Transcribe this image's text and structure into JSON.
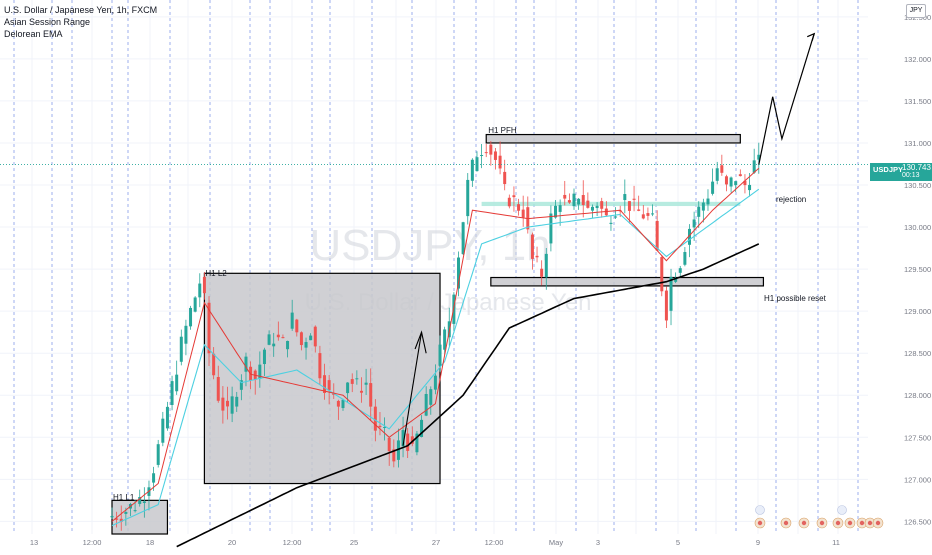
{
  "legend": {
    "title": "U.S. Dollar / Japanese Yen, 1h, FXCM",
    "indicator1": "Asian Session Range",
    "indicator2": "Delorean EMA"
  },
  "watermark": {
    "symbol": "USDJPY",
    "interval": "1h",
    "name": "U.S. Dollar / Japanese Yen"
  },
  "currency_button": "JPY",
  "price_tag": {
    "symbol": "USDJPY",
    "price": "130.743",
    "countdown": "00:13",
    "color": "#26a69a"
  },
  "annotations": {
    "h1_l1": "H1 L1",
    "h1_l2": "H1 L2",
    "h1_pfh": "H1 PFH",
    "rejection": "rejection",
    "h1_reset": "H1 possible reset"
  },
  "colors": {
    "up_candle": "#26a69a",
    "down_candle": "#ef5350",
    "ema_fast": "#e53935",
    "ema_mid": "#4dd0e1",
    "ema_slow": "#000000",
    "session_line": "#5b7ae0",
    "zone_fill": "#c8c8cc",
    "rejection_zone": "#a5e6d8"
  },
  "chart_data": {
    "type": "candlestick",
    "symbol": "USDJPY",
    "timeframe": "1h",
    "y_axis": {
      "ticks": [
        "132.500",
        "132.000",
        "131.500",
        "131.000",
        "130.500",
        "130.000",
        "129.500",
        "129.000",
        "128.500",
        "128.000",
        "127.500",
        "127.000",
        "126.500"
      ],
      "range": [
        126.35,
        132.7
      ]
    },
    "x_axis": {
      "ticks": [
        "13",
        "12:00",
        "18",
        "12:00",
        "20",
        "12:00",
        "25",
        "27",
        "12:00",
        "May",
        "3",
        "5",
        "9",
        "11"
      ]
    },
    "price_path": [
      [
        0,
        126.55
      ],
      [
        3,
        126.6
      ],
      [
        6,
        126.7
      ],
      [
        8,
        126.85
      ],
      [
        10,
        127.15
      ],
      [
        12,
        127.6
      ],
      [
        14,
        128.1
      ],
      [
        16,
        128.6
      ],
      [
        18,
        129.0
      ],
      [
        20,
        129.35
      ],
      [
        21,
        129.1
      ],
      [
        22,
        128.5
      ],
      [
        24,
        128.0
      ],
      [
        26,
        127.75
      ],
      [
        28,
        128.1
      ],
      [
        30,
        128.4
      ],
      [
        32,
        128.2
      ],
      [
        34,
        128.55
      ],
      [
        36,
        128.7
      ],
      [
        38,
        128.6
      ],
      [
        40,
        128.9
      ],
      [
        42,
        128.6
      ],
      [
        44,
        128.8
      ],
      [
        46,
        128.3
      ],
      [
        48,
        128.0
      ],
      [
        50,
        127.9
      ],
      [
        52,
        128.2
      ],
      [
        54,
        128.1
      ],
      [
        56,
        128.15
      ],
      [
        58,
        127.6
      ],
      [
        60,
        127.5
      ],
      [
        62,
        127.2
      ],
      [
        64,
        127.6
      ],
      [
        66,
        127.3
      ],
      [
        68,
        127.7
      ],
      [
        70,
        128.1
      ],
      [
        72,
        128.5
      ],
      [
        74,
        128.9
      ],
      [
        76,
        129.7
      ],
      [
        78,
        130.5
      ],
      [
        80,
        130.9
      ],
      [
        82,
        131.0
      ],
      [
        84,
        130.8
      ],
      [
        86,
        130.4
      ],
      [
        88,
        130.3
      ],
      [
        90,
        130.2
      ],
      [
        92,
        129.6
      ],
      [
        94,
        129.45
      ],
      [
        96,
        130.1
      ],
      [
        98,
        130.35
      ],
      [
        100,
        130.2
      ],
      [
        102,
        130.4
      ],
      [
        104,
        130.2
      ],
      [
        106,
        130.3
      ],
      [
        108,
        130.1
      ],
      [
        110,
        130.25
      ],
      [
        112,
        130.35
      ],
      [
        114,
        130.2
      ],
      [
        116,
        130.15
      ],
      [
        118,
        130.05
      ],
      [
        120,
        129.3
      ],
      [
        121,
        129.0
      ],
      [
        122,
        129.4
      ],
      [
        124,
        129.6
      ],
      [
        126,
        130.0
      ],
      [
        128,
        130.2
      ],
      [
        130,
        130.4
      ],
      [
        132,
        130.7
      ],
      [
        134,
        130.45
      ],
      [
        136,
        130.6
      ],
      [
        138,
        130.5
      ],
      [
        140,
        130.743
      ]
    ],
    "ema_fast_anchor": [
      [
        0,
        126.5
      ],
      [
        10,
        126.95
      ],
      [
        20,
        129.1
      ],
      [
        30,
        128.25
      ],
      [
        50,
        128.0
      ],
      [
        60,
        127.5
      ],
      [
        70,
        127.9
      ],
      [
        78,
        130.2
      ],
      [
        90,
        130.1
      ],
      [
        110,
        130.2
      ],
      [
        120,
        129.6
      ],
      [
        130,
        130.2
      ],
      [
        140,
        130.7
      ]
    ],
    "ema_mid_anchor": [
      [
        0,
        126.45
      ],
      [
        10,
        126.7
      ],
      [
        20,
        128.6
      ],
      [
        28,
        128.15
      ],
      [
        40,
        128.3
      ],
      [
        60,
        127.6
      ],
      [
        72,
        128.4
      ],
      [
        80,
        129.8
      ],
      [
        90,
        130.0
      ],
      [
        110,
        130.15
      ],
      [
        120,
        129.65
      ],
      [
        130,
        130.05
      ],
      [
        140,
        130.45
      ]
    ],
    "ema_slow": [
      [
        14,
        126.2
      ],
      [
        40,
        126.9
      ],
      [
        64,
        127.4
      ],
      [
        76,
        128.0
      ],
      [
        86,
        128.8
      ],
      [
        100,
        129.15
      ],
      [
        120,
        129.35
      ],
      [
        128,
        129.5
      ],
      [
        134,
        129.65
      ],
      [
        140,
        129.8
      ]
    ],
    "zones": [
      {
        "label": "H1 L1",
        "from": 0,
        "to": 12,
        "low": 126.35,
        "high": 126.75
      },
      {
        "label": "H1 L2",
        "from": 20,
        "to": 71,
        "low": 126.95,
        "high": 129.45
      },
      {
        "label": "H1 PFH",
        "from": 81,
        "to": 136,
        "low": 131.0,
        "high": 131.1
      },
      {
        "label": "H1 possible reset",
        "from": 82,
        "to": 141,
        "low": 129.3,
        "high": 129.4
      },
      {
        "label": "rejection",
        "from": 80,
        "to": 136,
        "low": 130.25,
        "high": 130.3
      }
    ],
    "projection": [
      [
        140,
        130.743
      ],
      [
        143,
        131.55
      ],
      [
        145,
        131.05
      ],
      [
        152,
        132.3
      ]
    ],
    "current_price": 130.743
  }
}
